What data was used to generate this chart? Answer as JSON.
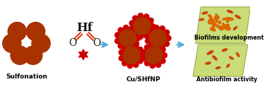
{
  "bg_color": "#ffffff",
  "dark_orange": "#A83200",
  "bright_red": "#CC0000",
  "light_green": "#C8DC78",
  "green_edge": "#99AA44",
  "arrow_color": "#55AADD",
  "text_color": "#000000",
  "hf_color": "#111111",
  "bond_color": "#DD2200",
  "orange_bacteria": "#CC4400",
  "bright_orange": "#DD6600",
  "label1": "Sulfonation",
  "label2": "Cu/SHfNP",
  "label3": "Biofilms development",
  "label4": "Antibiofilm activity",
  "hf_label": "Hf",
  "o_label1": "O",
  "o_label2": "O",
  "figsize": [
    3.78,
    1.33
  ],
  "dpi": 100
}
